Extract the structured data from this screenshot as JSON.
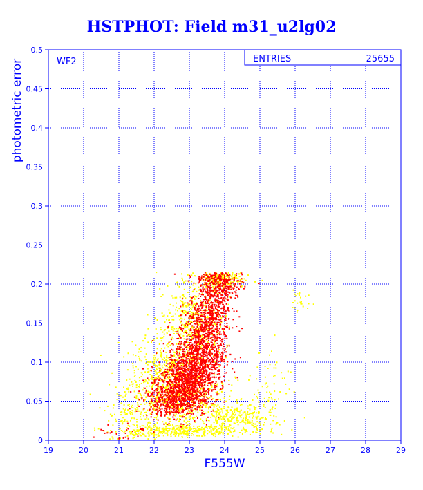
{
  "chart_data": {
    "type": "scatter",
    "title": "HSTPHOT: Field m31_u2lg02",
    "xlabel": "F555W",
    "ylabel": "photometric error",
    "xlim": [
      19,
      29
    ],
    "ylim": [
      0,
      0.5
    ],
    "x_ticks": [
      "19",
      "20",
      "21",
      "22",
      "23",
      "24",
      "25",
      "26",
      "27",
      "28",
      "29"
    ],
    "y_ticks": [
      "0",
      "0.05",
      "0.1",
      "0.15",
      "0.2",
      "0.25",
      "0.3",
      "0.35",
      "0.4",
      "0.45",
      "0.5"
    ],
    "grid": true,
    "annotation": "WF2",
    "stats_box": {
      "label": "ENTRIES",
      "value": "25655"
    },
    "colors": {
      "frame": "#0000ff",
      "grid": "#0000ff",
      "points_primary": "#ff0000",
      "points_secondary": "#ffff00"
    },
    "series": [
      {
        "color": "#ffff00",
        "clusters": [
          {
            "x": 22.4,
            "y": 0.08,
            "sx": 0.55,
            "sy": 0.025,
            "n": 600
          },
          {
            "x": 23.1,
            "y": 0.15,
            "sx": 0.45,
            "sy": 0.03,
            "n": 500
          },
          {
            "x": 23.9,
            "y": 0.205,
            "sx": 0.35,
            "sy": 0.007,
            "n": 200
          },
          {
            "x": 22.8,
            "y": 0.05,
            "sx": 0.6,
            "sy": 0.015,
            "n": 350
          },
          {
            "x": 21.3,
            "y": 0.03,
            "sx": 0.35,
            "sy": 0.015,
            "n": 120
          },
          {
            "x": 22.7,
            "y": 0.012,
            "sx": 0.9,
            "sy": 0.004,
            "n": 350
          },
          {
            "x": 24.3,
            "y": 0.028,
            "sx": 0.55,
            "sy": 0.01,
            "n": 280
          },
          {
            "x": 25.3,
            "y": 0.07,
            "sx": 0.3,
            "sy": 0.025,
            "n": 70
          },
          {
            "x": 26.2,
            "y": 0.18,
            "sx": 0.15,
            "sy": 0.01,
            "n": 25
          }
        ]
      },
      {
        "color": "#ff0000",
        "clusters": [
          {
            "x": 22.9,
            "y": 0.07,
            "sx": 0.4,
            "sy": 0.018,
            "n": 1000
          },
          {
            "x": 23.3,
            "y": 0.11,
            "sx": 0.35,
            "sy": 0.022,
            "n": 800
          },
          {
            "x": 23.6,
            "y": 0.16,
            "sx": 0.3,
            "sy": 0.025,
            "n": 550
          },
          {
            "x": 23.9,
            "y": 0.2,
            "sx": 0.3,
            "sy": 0.01,
            "n": 280
          },
          {
            "x": 22.4,
            "y": 0.05,
            "sx": 0.35,
            "sy": 0.01,
            "n": 300
          },
          {
            "x": 21.0,
            "y": 0.012,
            "sx": 0.4,
            "sy": 0.006,
            "n": 25
          }
        ]
      }
    ]
  }
}
